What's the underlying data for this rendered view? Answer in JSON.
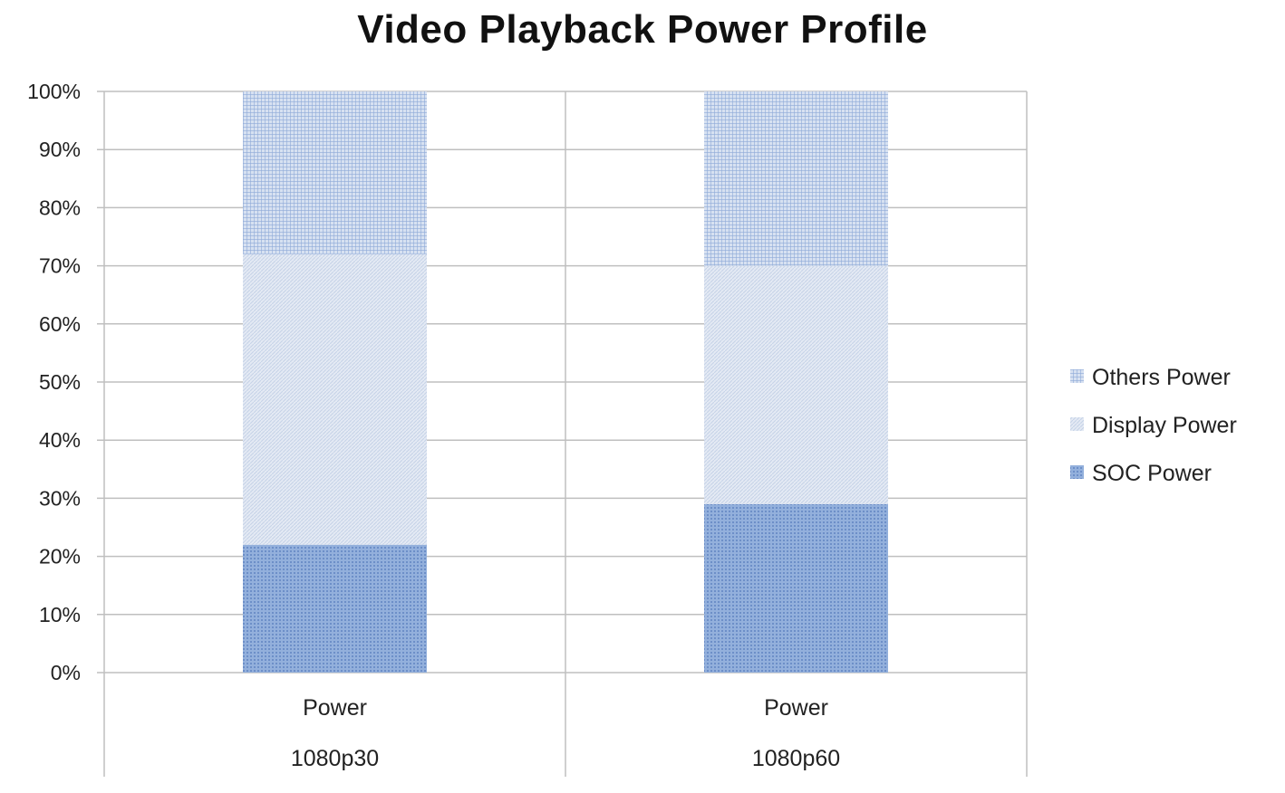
{
  "chart_data": {
    "type": "bar",
    "stacked": true,
    "title": "Video Playback Power Profile",
    "xlabel": "",
    "ylabel": "",
    "ylim": [
      0,
      100
    ],
    "yticks": [
      "0%",
      "10%",
      "20%",
      "30%",
      "40%",
      "50%",
      "60%",
      "70%",
      "80%",
      "90%",
      "100%"
    ],
    "categories": [
      "Power",
      "Power"
    ],
    "group_labels": [
      "1080p30",
      "1080p60"
    ],
    "series": [
      {
        "name": "SOC Power",
        "values": [
          22,
          29
        ],
        "color": "#7f9fd0",
        "pattern": "dots"
      },
      {
        "name": "Display Power",
        "values": [
          50,
          41
        ],
        "color": "#dfe6f2",
        "pattern": "diagonal"
      },
      {
        "name": "Others Power",
        "values": [
          28,
          30
        ],
        "color": "#a9c0e2",
        "pattern": "grid"
      }
    ],
    "legend_position": "right",
    "grid": true
  }
}
